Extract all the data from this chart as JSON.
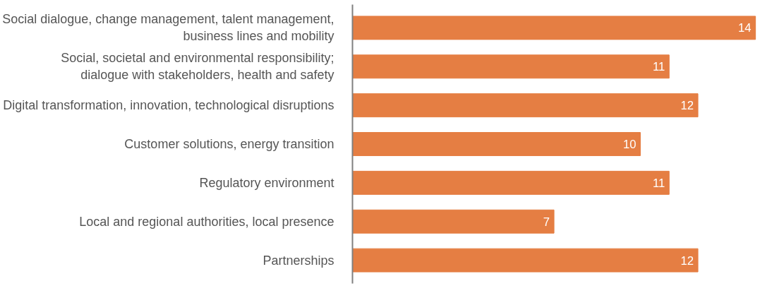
{
  "chart_data": {
    "type": "bar",
    "orientation": "horizontal",
    "data_labels": true,
    "color": "#e57e43",
    "categories": [
      "Social dialogue, change management, talent management,\nbusiness lines and mobility",
      "Social, societal and environmental responsibility;\ndialogue with stakeholders, health and safety",
      "Digital transformation, innovation, technological disruptions",
      "Customer solutions, energy transition",
      "Regulatory environment",
      "Local and regional authorities, local presence",
      "Partnerships"
    ],
    "values": [
      14,
      11,
      12,
      10,
      11,
      7,
      12
    ]
  }
}
